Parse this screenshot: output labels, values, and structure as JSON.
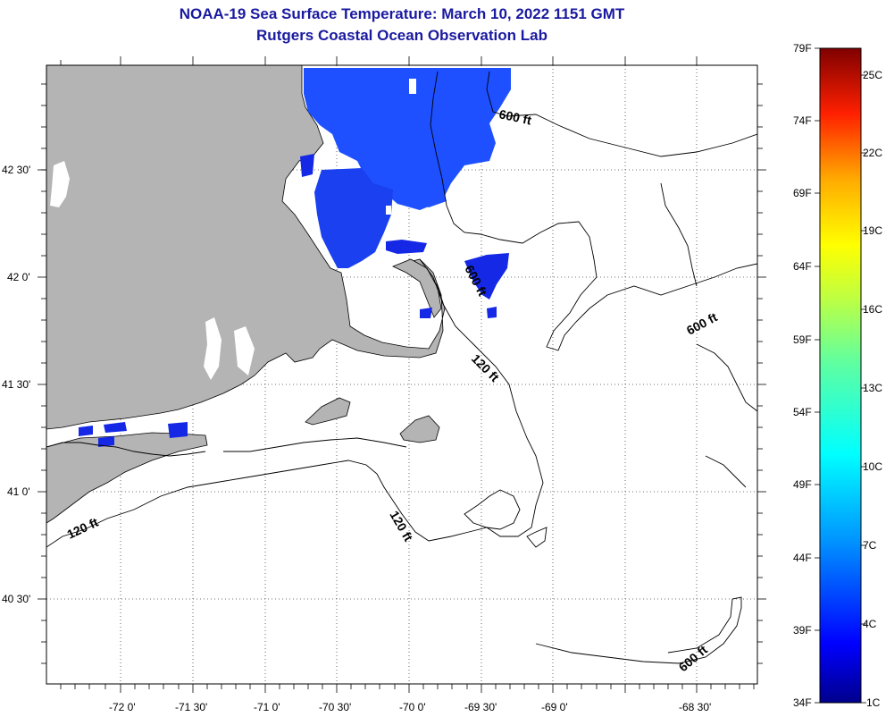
{
  "title": "NOAA-19 Sea Surface Temperature:  March 10, 2022 1151 GMT",
  "subtitle": "Rutgers Coastal Ocean Observation Lab",
  "lon_labels": [
    "-72 0'",
    "-71 30'",
    "-71 0'",
    "-70 30'",
    "-70 0'",
    "-69 30'",
    "-69 0'",
    "-68 30'"
  ],
  "lat_labels": [
    "42 30'",
    "42 0'",
    "41 30'",
    "41 0'",
    "40 30'"
  ],
  "contour_labels": [
    "600 ft",
    "600 ft",
    "600 ft",
    "120 ft",
    "120 ft",
    "120 ft",
    "600 ft"
  ],
  "colorbar": {
    "fahrenheit": [
      "79F",
      "74F",
      "69F",
      "64F",
      "59F",
      "54F",
      "49F",
      "44F",
      "39F",
      "34F"
    ],
    "celsius": [
      "25C",
      "22C",
      "19C",
      "16C",
      "13C",
      "10C",
      "7C",
      "4C",
      "1C"
    ]
  },
  "colors": {
    "land": "#b4b4b4",
    "title": "#1a1aa0",
    "cold_water": "#1e50ff",
    "colder_water": "#1428e6"
  }
}
